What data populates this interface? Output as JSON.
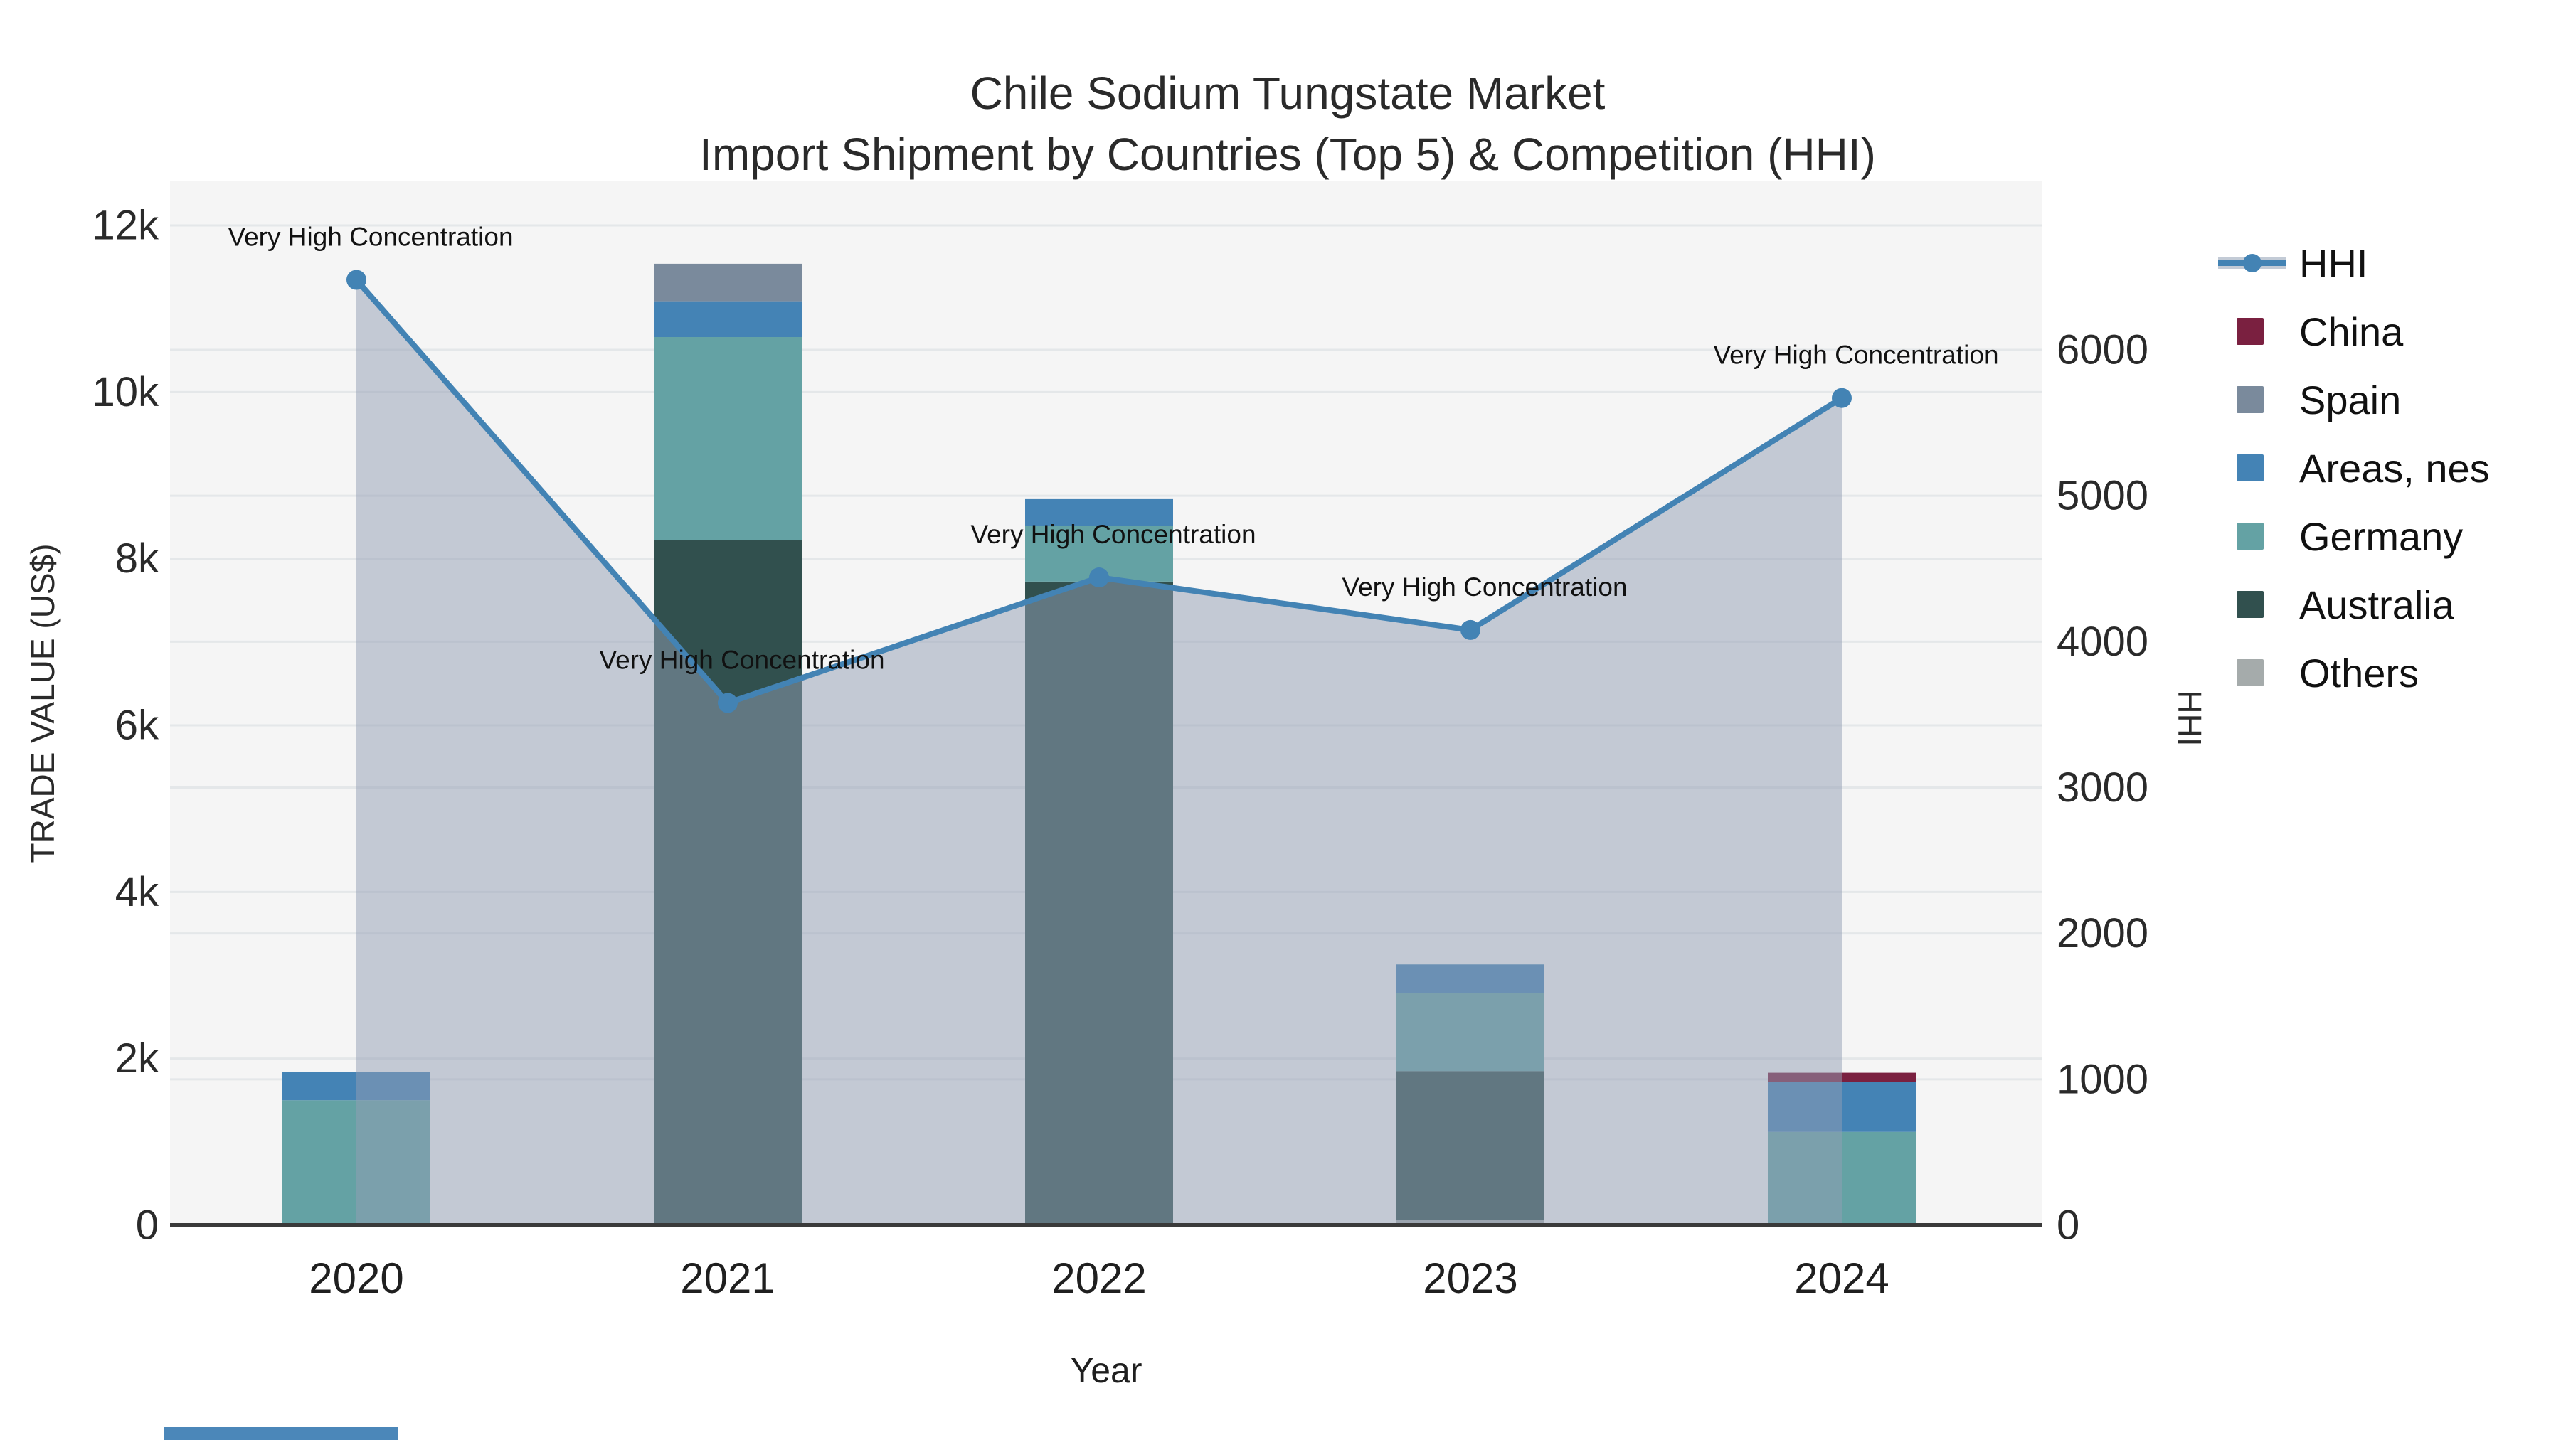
{
  "title": {
    "line1": "Chile Sodium Tungstate Market",
    "line2": "Import Shipment by Countries (Top 5) & Competition (HHI)"
  },
  "chart_data": {
    "type": "stacked-bar+line",
    "x_categories": [
      "2020",
      "2021",
      "2022",
      "2023",
      "2024"
    ],
    "series": [
      {
        "name": "Others",
        "values": [
          0,
          0,
          0,
          60,
          0
        ]
      },
      {
        "name": "Australia",
        "values": [
          0,
          8220,
          7725,
          1790,
          0
        ]
      },
      {
        "name": "Germany",
        "values": [
          1500,
          2440,
          665,
          940,
          1120
        ]
      },
      {
        "name": "Areas, nes",
        "values": [
          340,
          430,
          325,
          340,
          600
        ]
      },
      {
        "name": "Spain",
        "values": [
          0,
          450,
          0,
          0,
          0
        ]
      },
      {
        "name": "China",
        "values": [
          0,
          0,
          0,
          0,
          110
        ]
      }
    ],
    "colors": {
      "China": "#7a2040",
      "Spain": "#7a8a9c",
      "Areas, nes": "#4483b5",
      "Germany": "#64a2a4",
      "Australia": "#31504e",
      "Others": "#a5abab"
    },
    "hhi": {
      "name": "HHI",
      "values": [
        6480,
        3580,
        4440,
        4080,
        5670
      ],
      "line_color": "#4383b4",
      "area_fill": "rgba(145,158,180,0.5)"
    },
    "annotations": [
      {
        "year": "2020",
        "text": "Very High Concentration"
      },
      {
        "year": "2021",
        "text": "Very High Concentration"
      },
      {
        "year": "2022",
        "text": "Very High Concentration"
      },
      {
        "year": "2023",
        "text": "Very High Concentration"
      },
      {
        "year": "2024",
        "text": "Very High Concentration"
      }
    ],
    "left_axis": {
      "title": "TRADE VALUE (US$)",
      "tick_labels": [
        "0",
        "2k",
        "4k",
        "6k",
        "8k",
        "10k",
        "12k"
      ],
      "tick_values": [
        0,
        2000,
        4000,
        6000,
        8000,
        10000,
        12000
      ],
      "range": [
        0,
        12000
      ],
      "grid": true
    },
    "right_axis": {
      "title": "HHI",
      "tick_labels": [
        "0",
        "1000",
        "2000",
        "3000",
        "4000",
        "5000",
        "6000"
      ],
      "tick_values": [
        0,
        1000,
        2000,
        3000,
        4000,
        5000,
        6000
      ],
      "range": [
        0,
        6000
      ],
      "grid": true
    },
    "x_axis": {
      "title": "Year"
    },
    "legend": {
      "position": "right",
      "items": [
        {
          "label": "HHI",
          "kind": "line"
        },
        {
          "label": "China",
          "kind": "swatch"
        },
        {
          "label": "Spain",
          "kind": "swatch"
        },
        {
          "label": "Areas, nes",
          "kind": "swatch"
        },
        {
          "label": "Germany",
          "kind": "swatch"
        },
        {
          "label": "Australia",
          "kind": "swatch"
        },
        {
          "label": "Others",
          "kind": "swatch"
        }
      ]
    }
  },
  "misc": {
    "plot_background": "#f5f5f5",
    "gridline_color": "#e4e7e9",
    "axis_line_color": "#3a3a3a",
    "bottom_left_strip_color": "#4b87b9"
  }
}
